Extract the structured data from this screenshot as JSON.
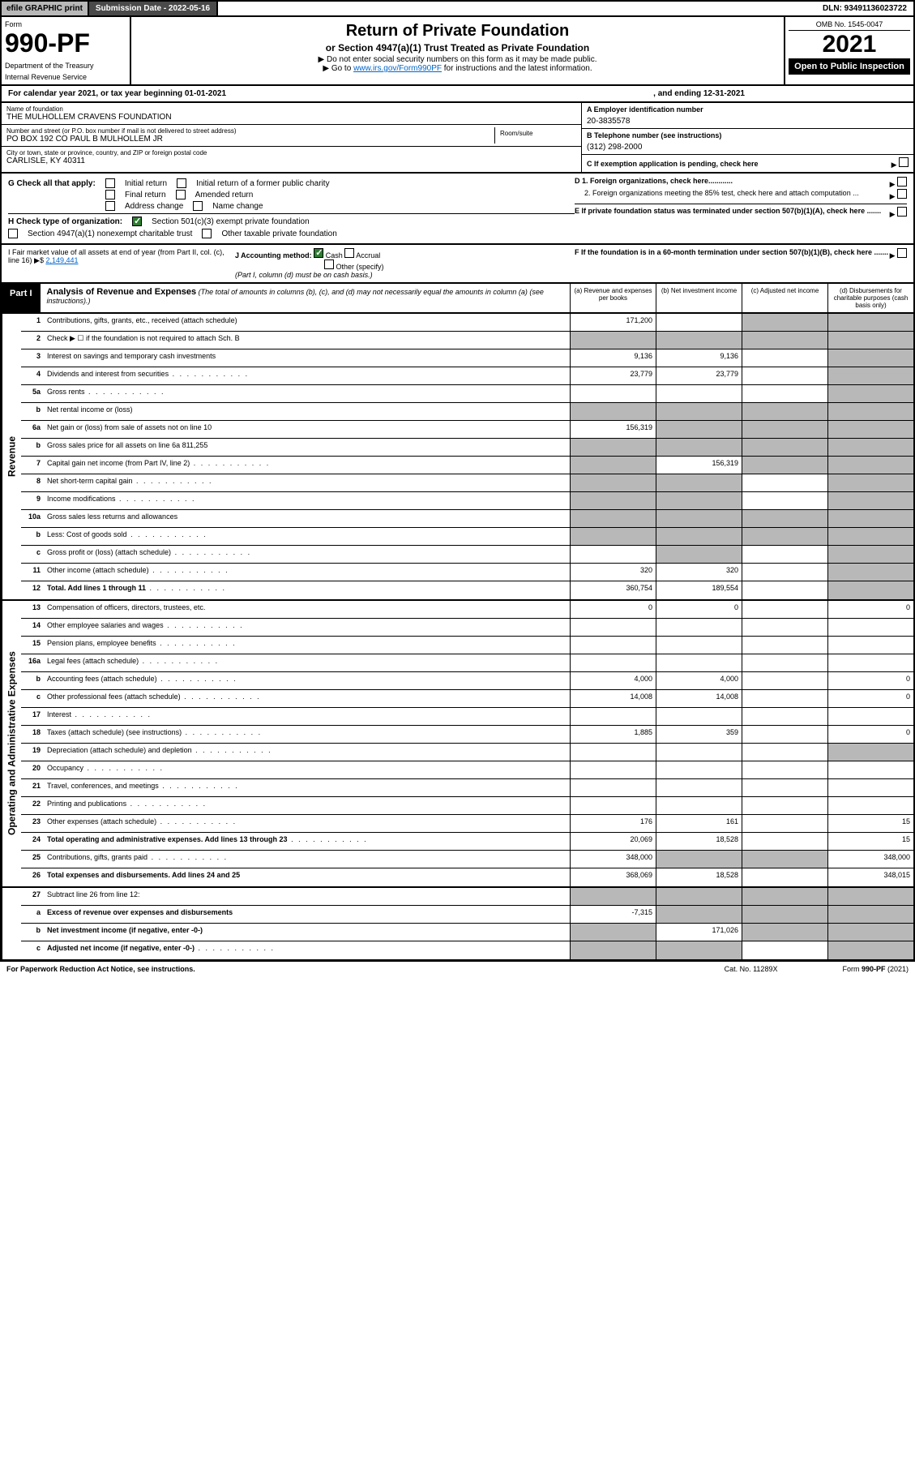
{
  "topbar": {
    "efile": "efile GRAPHIC print",
    "submission": "Submission Date - 2022-05-16",
    "dln": "DLN: 93491136023722"
  },
  "header": {
    "form_label": "Form",
    "form_num": "990-PF",
    "dept": "Department of the Treasury",
    "irs": "Internal Revenue Service",
    "title": "Return of Private Foundation",
    "subtitle": "or Section 4947(a)(1) Trust Treated as Private Foundation",
    "note1": "▶ Do not enter social security numbers on this form as it may be made public.",
    "note2": "▶ Go to ",
    "link": "www.irs.gov/Form990PF",
    "note3": " for instructions and the latest information.",
    "omb": "OMB No. 1545-0047",
    "year": "2021",
    "open": "Open to Public Inspection"
  },
  "calyear": {
    "text": "For calendar year 2021, or tax year beginning 01-01-2021",
    "ending": ", and ending 12-31-2021"
  },
  "info": {
    "name_label": "Name of foundation",
    "name": "THE MULHOLLEM CRAVENS FOUNDATION",
    "addr_label": "Number and street (or P.O. box number if mail is not delivered to street address)",
    "room": "Room/suite",
    "addr": "PO BOX 192 CO PAUL B MULHOLLEM JR",
    "city_label": "City or town, state or province, country, and ZIP or foreign postal code",
    "city": "CARLISLE, KY  40311",
    "ein_label": "A Employer identification number",
    "ein": "20-3835578",
    "phone_label": "B Telephone number (see instructions)",
    "phone": "(312) 298-2000",
    "c": "C If exemption application is pending, check here",
    "d1": "D 1. Foreign organizations, check here............",
    "d2": "2. Foreign organizations meeting the 85% test, check here and attach computation ...",
    "e": "E  If private foundation status was terminated under section 507(b)(1)(A), check here .......",
    "f": "F  If the foundation is in a 60-month termination under section 507(b)(1)(B), check here ......."
  },
  "g": {
    "label": "G Check all that apply:",
    "initial": "Initial return",
    "initial_pub": "Initial return of a former public charity",
    "final": "Final return",
    "amended": "Amended return",
    "addr_chg": "Address change",
    "name_chg": "Name change"
  },
  "h": {
    "label": "H Check type of organization:",
    "opt1": "Section 501(c)(3) exempt private foundation",
    "opt2": "Section 4947(a)(1) nonexempt charitable trust",
    "opt3": "Other taxable private foundation"
  },
  "i": {
    "label": "I Fair market value of all assets at end of year (from Part II, col. (c), line 16) ▶$ ",
    "val": "2,149,441"
  },
  "j": {
    "label": "J Accounting method:",
    "cash": "Cash",
    "accrual": "Accrual",
    "other": "Other (specify)",
    "note": "(Part I, column (d) must be on cash basis.)"
  },
  "part1": {
    "label": "Part I",
    "title": "Analysis of Revenue and Expenses",
    "desc": " (The total of amounts in columns (b), (c), and (d) may not necessarily equal the amounts in column (a) (see instructions).)",
    "cols": {
      "a": "(a)   Revenue and expenses per books",
      "b": "(b)   Net investment income",
      "c": "(c)   Adjusted net income",
      "d": "(d)   Disbursements for charitable purposes (cash basis only)"
    }
  },
  "sections": {
    "revenue": "Revenue",
    "expenses": "Operating and Administrative Expenses"
  },
  "rows": [
    {
      "n": "1",
      "d": "Contributions, gifts, grants, etc., received (attach schedule)",
      "a": "171,200",
      "b": "",
      "c": "g",
      "dd": "g"
    },
    {
      "n": "2",
      "d": "Check ▶ ☐ if the foundation is not required to attach Sch. B",
      "a": "g",
      "b": "g",
      "c": "g",
      "dd": "g",
      "dotted": true
    },
    {
      "n": "3",
      "d": "Interest on savings and temporary cash investments",
      "a": "9,136",
      "b": "9,136",
      "c": "",
      "dd": "g"
    },
    {
      "n": "4",
      "d": "Dividends and interest from securities",
      "a": "23,779",
      "b": "23,779",
      "c": "",
      "dd": "g",
      "dots": true
    },
    {
      "n": "5a",
      "d": "Gross rents",
      "a": "",
      "b": "",
      "c": "",
      "dd": "g",
      "dots": true
    },
    {
      "n": "b",
      "d": "Net rental income or (loss)",
      "a": "g",
      "b": "g",
      "c": "g",
      "dd": "g"
    },
    {
      "n": "6a",
      "d": "Net gain or (loss) from sale of assets not on line 10",
      "a": "156,319",
      "b": "g",
      "c": "g",
      "dd": "g"
    },
    {
      "n": "b",
      "d": "Gross sales price for all assets on line 6a            811,255",
      "a": "g",
      "b": "g",
      "c": "g",
      "dd": "g"
    },
    {
      "n": "7",
      "d": "Capital gain net income (from Part IV, line 2)",
      "a": "g",
      "b": "156,319",
      "c": "g",
      "dd": "g",
      "dots": true
    },
    {
      "n": "8",
      "d": "Net short-term capital gain",
      "a": "g",
      "b": "g",
      "c": "",
      "dd": "g",
      "dots": true
    },
    {
      "n": "9",
      "d": "Income modifications",
      "a": "g",
      "b": "g",
      "c": "",
      "dd": "g",
      "dots": true
    },
    {
      "n": "10a",
      "d": "Gross sales less returns and allowances",
      "a": "g",
      "b": "g",
      "c": "g",
      "dd": "g"
    },
    {
      "n": "b",
      "d": "Less: Cost of goods sold",
      "a": "g",
      "b": "g",
      "c": "g",
      "dd": "g",
      "dots": true
    },
    {
      "n": "c",
      "d": "Gross profit or (loss) (attach schedule)",
      "a": "",
      "b": "g",
      "c": "",
      "dd": "g",
      "dots": true
    },
    {
      "n": "11",
      "d": "Other income (attach schedule)",
      "a": "320",
      "b": "320",
      "c": "",
      "dd": "g",
      "dots": true
    },
    {
      "n": "12",
      "d": "Total. Add lines 1 through 11",
      "a": "360,754",
      "b": "189,554",
      "c": "",
      "dd": "g",
      "bold": true,
      "dots": true
    }
  ],
  "exp_rows": [
    {
      "n": "13",
      "d": "Compensation of officers, directors, trustees, etc.",
      "a": "0",
      "b": "0",
      "c": "",
      "dd": "0"
    },
    {
      "n": "14",
      "d": "Other employee salaries and wages",
      "a": "",
      "b": "",
      "c": "",
      "dd": "",
      "dots": true
    },
    {
      "n": "15",
      "d": "Pension plans, employee benefits",
      "a": "",
      "b": "",
      "c": "",
      "dd": "",
      "dots": true
    },
    {
      "n": "16a",
      "d": "Legal fees (attach schedule)",
      "a": "",
      "b": "",
      "c": "",
      "dd": "",
      "dots": true
    },
    {
      "n": "b",
      "d": "Accounting fees (attach schedule)",
      "a": "4,000",
      "b": "4,000",
      "c": "",
      "dd": "0",
      "dots": true
    },
    {
      "n": "c",
      "d": "Other professional fees (attach schedule)",
      "a": "14,008",
      "b": "14,008",
      "c": "",
      "dd": "0",
      "dots": true
    },
    {
      "n": "17",
      "d": "Interest",
      "a": "",
      "b": "",
      "c": "",
      "dd": "",
      "dots": true
    },
    {
      "n": "18",
      "d": "Taxes (attach schedule) (see instructions)",
      "a": "1,885",
      "b": "359",
      "c": "",
      "dd": "0",
      "dots": true
    },
    {
      "n": "19",
      "d": "Depreciation (attach schedule) and depletion",
      "a": "",
      "b": "",
      "c": "",
      "dd": "g",
      "dots": true
    },
    {
      "n": "20",
      "d": "Occupancy",
      "a": "",
      "b": "",
      "c": "",
      "dd": "",
      "dots": true
    },
    {
      "n": "21",
      "d": "Travel, conferences, and meetings",
      "a": "",
      "b": "",
      "c": "",
      "dd": "",
      "dots": true
    },
    {
      "n": "22",
      "d": "Printing and publications",
      "a": "",
      "b": "",
      "c": "",
      "dd": "",
      "dots": true
    },
    {
      "n": "23",
      "d": "Other expenses (attach schedule)",
      "a": "176",
      "b": "161",
      "c": "",
      "dd": "15",
      "dots": true
    },
    {
      "n": "24",
      "d": "Total operating and administrative expenses. Add lines 13 through 23",
      "a": "20,069",
      "b": "18,528",
      "c": "",
      "dd": "15",
      "bold": true,
      "dots": true
    },
    {
      "n": "25",
      "d": "Contributions, gifts, grants paid",
      "a": "348,000",
      "b": "g",
      "c": "g",
      "dd": "348,000",
      "dots": true
    },
    {
      "n": "26",
      "d": "Total expenses and disbursements. Add lines 24 and 25",
      "a": "368,069",
      "b": "18,528",
      "c": "",
      "dd": "348,015",
      "bold": true
    }
  ],
  "net_rows": [
    {
      "n": "27",
      "d": "Subtract line 26 from line 12:",
      "a": "g",
      "b": "g",
      "c": "g",
      "dd": "g"
    },
    {
      "n": "a",
      "d": "Excess of revenue over expenses and disbursements",
      "a": "-7,315",
      "b": "g",
      "c": "g",
      "dd": "g",
      "bold": true
    },
    {
      "n": "b",
      "d": "Net investment income (if negative, enter -0-)",
      "a": "g",
      "b": "171,026",
      "c": "g",
      "dd": "g",
      "bold": true
    },
    {
      "n": "c",
      "d": "Adjusted net income (if negative, enter -0-)",
      "a": "g",
      "b": "g",
      "c": "",
      "dd": "g",
      "bold": true,
      "dots": true
    }
  ],
  "footer": {
    "pra": "For Paperwork Reduction Act Notice, see instructions.",
    "cat": "Cat. No. 11289X",
    "form": "Form 990-PF (2021)"
  }
}
